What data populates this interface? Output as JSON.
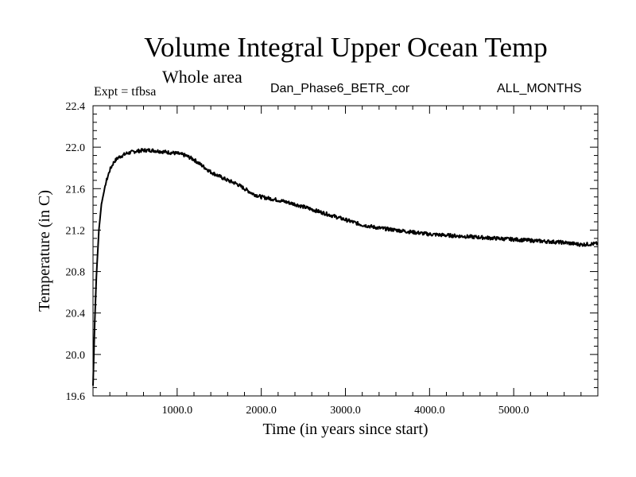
{
  "chart_data": {
    "type": "line",
    "title": "Volume Integral Upper Ocean Temp",
    "subtitle": "Whole area",
    "experiment": "Expt = tfbsa",
    "run_name": "Dan_Phase6_BETR_cor",
    "period": "ALL_MONTHS",
    "xlabel": "Time (in years since start)",
    "ylabel": "Temperature (in C)",
    "xlim": [
      0,
      6000
    ],
    "ylim": [
      19.6,
      22.4
    ],
    "x_ticks": [
      1000,
      2000,
      3000,
      4000,
      5000
    ],
    "x_tick_labels": [
      "1000.0",
      "2000.0",
      "3000.0",
      "4000.0",
      "5000.0"
    ],
    "y_ticks": [
      19.6,
      20.0,
      20.4,
      20.8,
      21.2,
      21.6,
      22.0,
      22.4
    ],
    "y_tick_labels": [
      "19.6",
      "20.0",
      "20.4",
      "20.8",
      "21.2",
      "21.6",
      "22.0",
      "22.4"
    ],
    "series": [
      {
        "name": "Volume Integral Upper Ocean Temp",
        "color": "#000000",
        "x": [
          0,
          20,
          40,
          70,
          100,
          150,
          200,
          250,
          300,
          400,
          500,
          600,
          700,
          800,
          900,
          1000,
          1100,
          1200,
          1300,
          1400,
          1500,
          1600,
          1700,
          1800,
          1900,
          2000,
          2200,
          2400,
          2600,
          2800,
          3000,
          3200,
          3400,
          3600,
          3800,
          4000,
          4200,
          4400,
          4600,
          4800,
          5000,
          5200,
          5400,
          5600,
          5800,
          6000
        ],
        "values": [
          19.7,
          20.3,
          20.75,
          21.2,
          21.45,
          21.65,
          21.78,
          21.86,
          21.9,
          21.94,
          21.96,
          21.97,
          21.97,
          21.96,
          21.95,
          21.94,
          21.92,
          21.88,
          21.82,
          21.76,
          21.72,
          21.68,
          21.65,
          21.6,
          21.55,
          21.52,
          21.49,
          21.45,
          21.4,
          21.35,
          21.3,
          21.25,
          21.22,
          21.2,
          21.18,
          21.16,
          21.15,
          21.14,
          21.13,
          21.12,
          21.11,
          21.1,
          21.09,
          21.08,
          21.06,
          21.07
        ]
      }
    ],
    "grid": false
  }
}
